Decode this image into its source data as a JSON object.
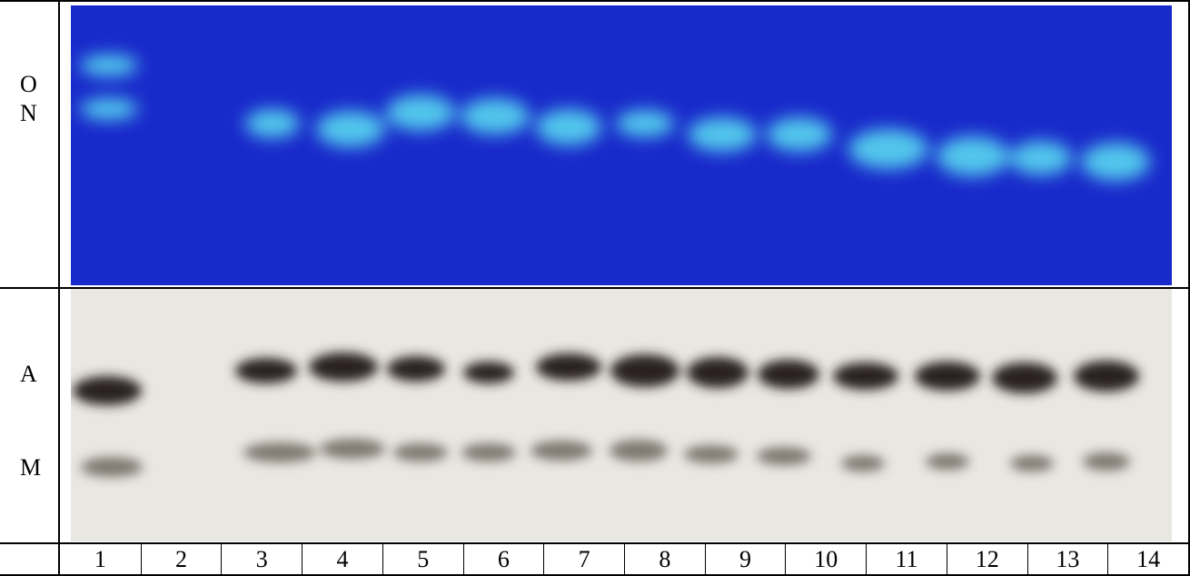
{
  "top_panel": {
    "labels": [
      "O",
      "N"
    ]
  },
  "bottom_panel": {
    "labels": [
      "A",
      "M"
    ]
  },
  "lanes": [
    "1",
    "2",
    "3",
    "4",
    "5",
    "6",
    "7",
    "8",
    "9",
    "10",
    "11",
    "12",
    "13",
    "14"
  ]
}
